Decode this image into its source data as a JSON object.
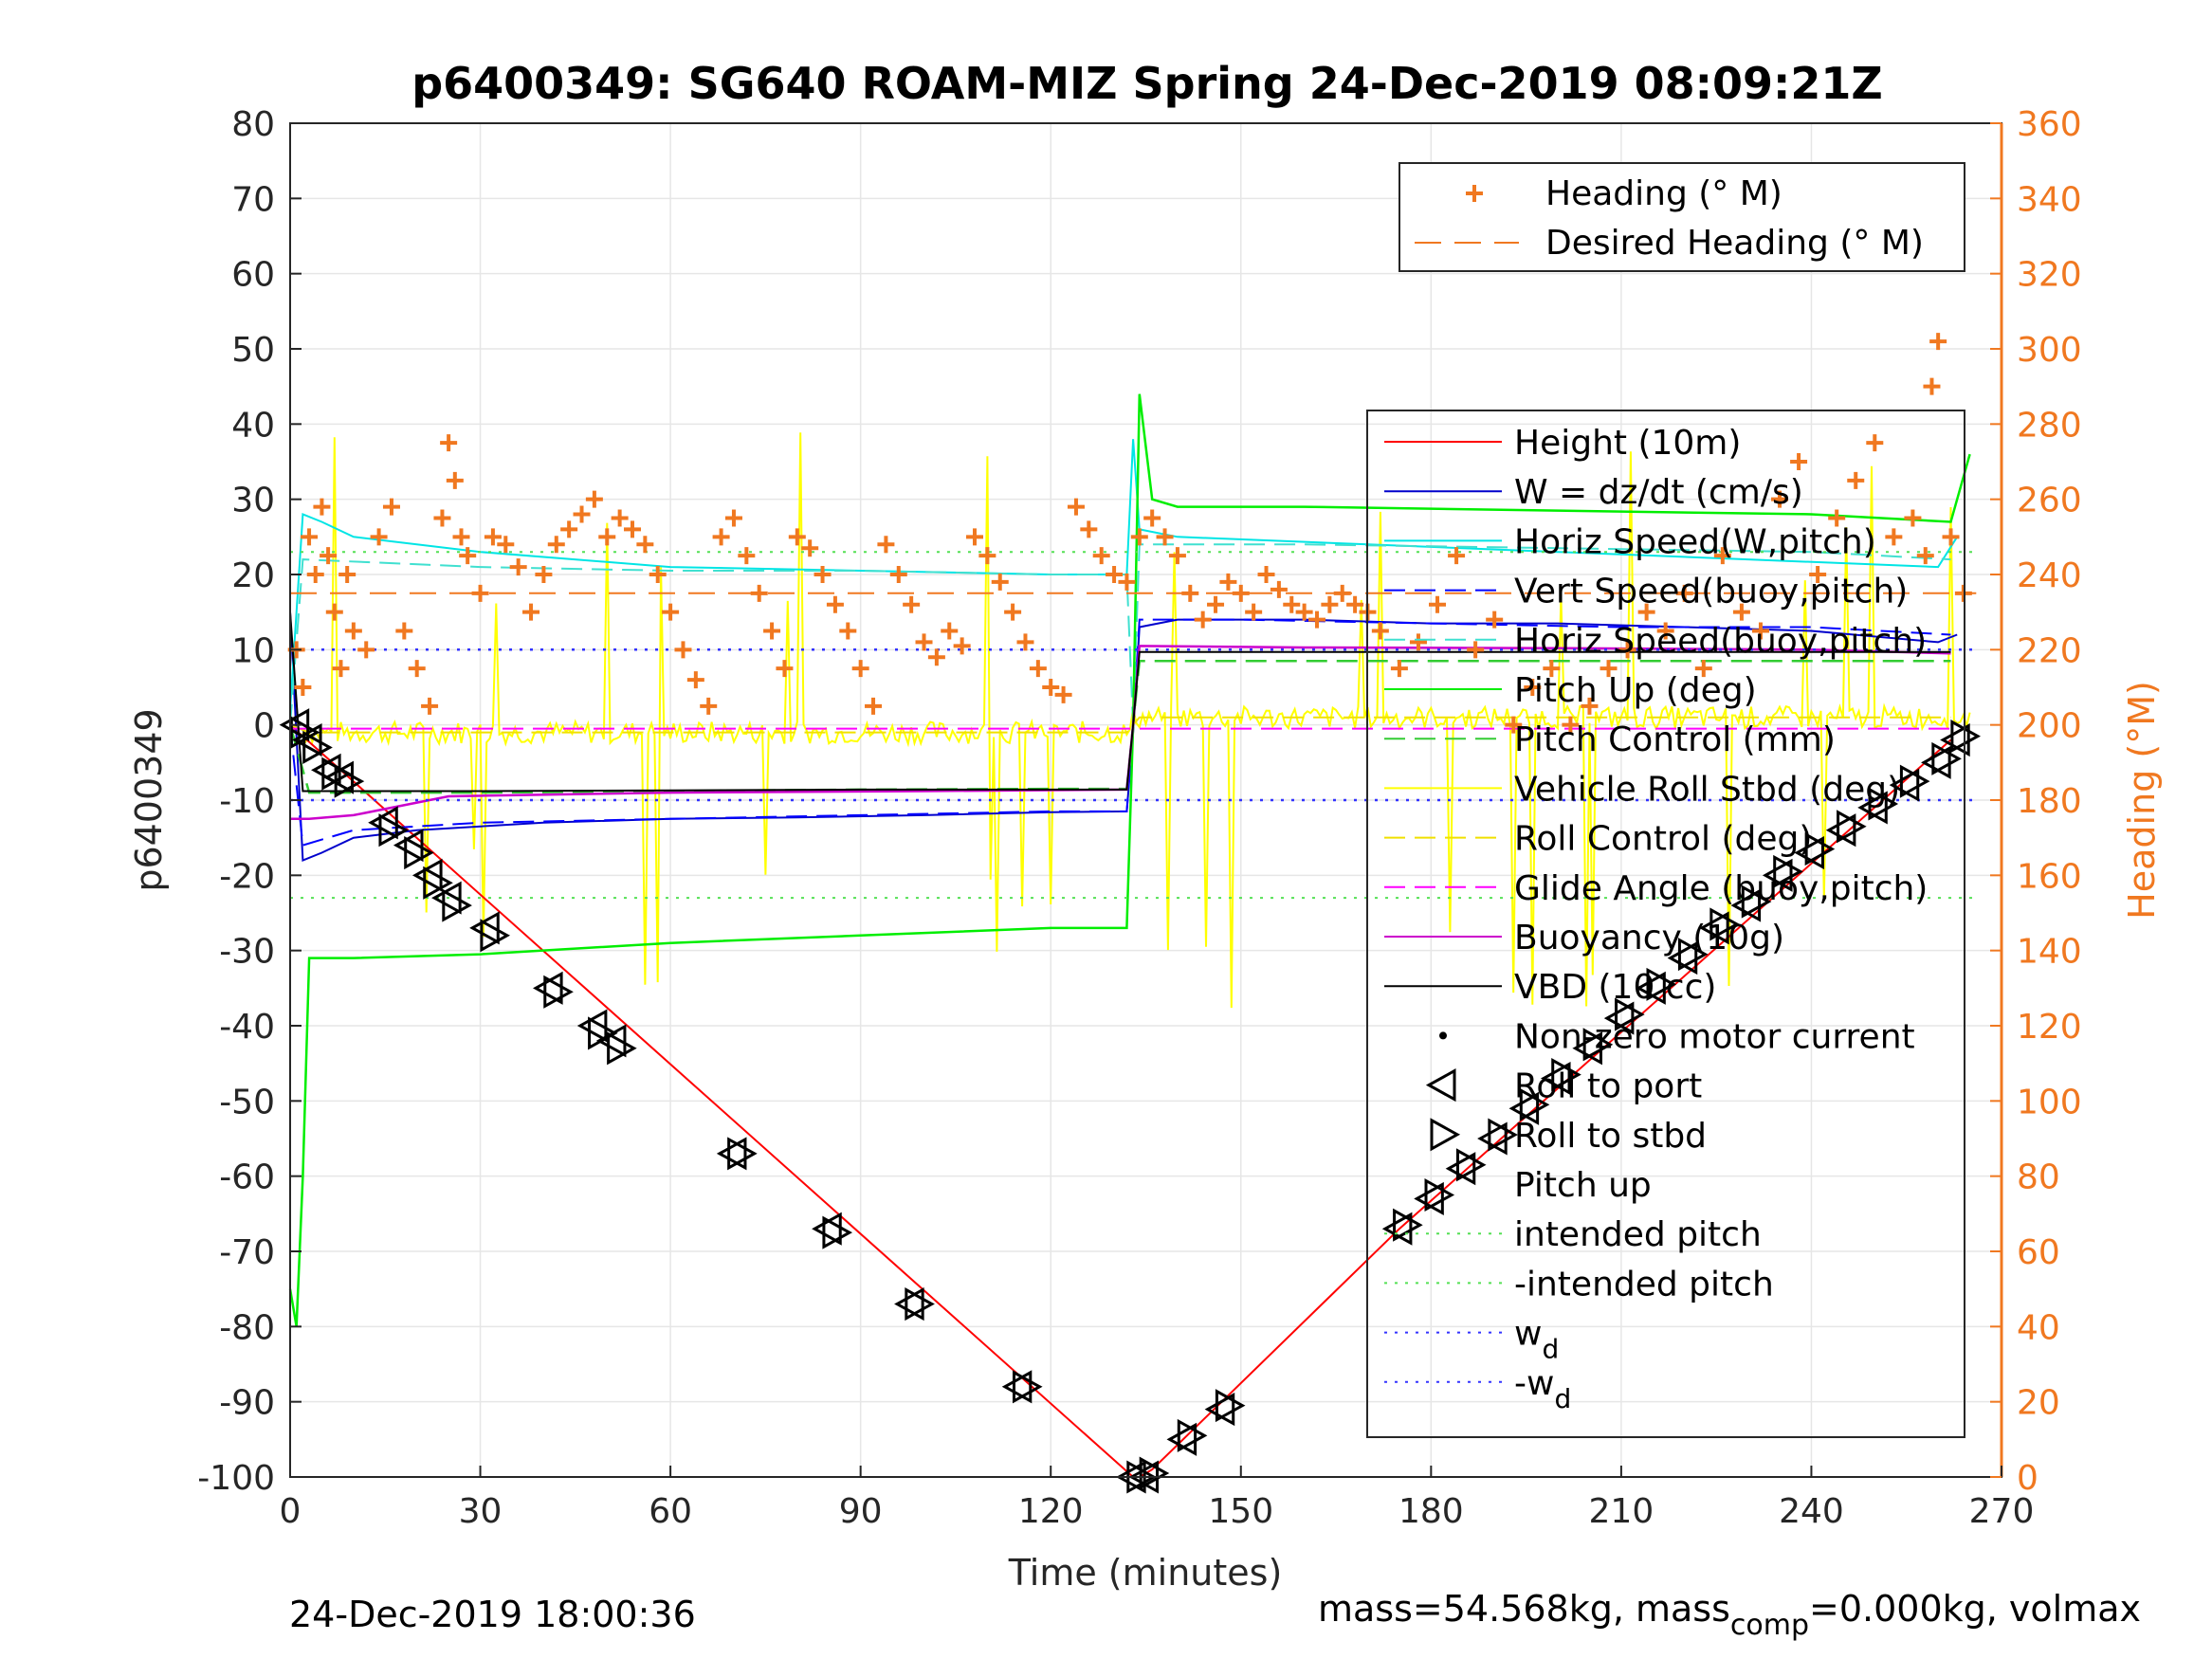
{
  "chart_data": {
    "type": "line",
    "title": "p6400349: SG640 ROAM-MIZ Spring 24-Dec-2019 08:09:21Z",
    "xlabel": "Time (minutes)",
    "ylabel": "p6400349",
    "y2label": "Heading (°M)",
    "xlim": [
      0,
      270
    ],
    "ylim": [
      -100,
      80
    ],
    "y2lim": [
      0,
      360
    ],
    "xticks": [
      "0",
      "30",
      "60",
      "90",
      "120",
      "150",
      "180",
      "210",
      "240",
      "270"
    ],
    "yticks": [
      "80",
      "70",
      "60",
      "50",
      "40",
      "30",
      "20",
      "10",
      "0",
      "-10",
      "-20",
      "-30",
      "-40",
      "-50",
      "-60",
      "-70",
      "-80",
      "-90",
      "-100"
    ],
    "y2ticks": [
      "360",
      "340",
      "320",
      "300",
      "280",
      "260",
      "240",
      "220",
      "200",
      "180",
      "160",
      "140",
      "120",
      "100",
      "80",
      "60",
      "40",
      "20",
      "0"
    ],
    "grid": true,
    "legend_top": {
      "placement": "top-right",
      "entries": [
        "Heading (° M)",
        "Desired Heading (° M)"
      ]
    },
    "legend_main": {
      "placement": "right",
      "entries": [
        "Height (10m)",
        "W = dz/dt (cm/s)",
        "Horiz Speed(W,pitch)",
        "Vert Speed(buoy,pitch)",
        "Horiz Speed(buoy,pitch)",
        "Pitch Up (deg)",
        "Pitch Control (mm)",
        "Vehicle Roll Stbd (deg)",
        "Roll Control (deg)",
        "Glide Angle (buoy,pitch)",
        "Buoyancy (10g)",
        "VBD (10 cc)",
        "Non-zero motor current",
        "Roll to port",
        "Roll to stbd",
        "Pitch up",
        "intended pitch",
        "-intended pitch",
        "w",
        "-w"
      ],
      "subscript": "d"
    },
    "colors": {
      "height": "#FF0000",
      "w": "#0000CC",
      "horiz_w": "#00E5E5",
      "vert_buoy": "#0000FF",
      "horiz_buoy": "#40E0D0",
      "pitch_up": "#00EE00",
      "pitch_ctrl": "#33CC33",
      "roll": "#FFFF00",
      "roll_ctrl": "#F0E000",
      "glide": "#FF00FF",
      "buoy": "#CC00CC",
      "vbd": "#000000",
      "heading": "#F07820",
      "desired": "#F07820",
      "intended": "#55E055",
      "wd": "#3333FF"
    },
    "series": [
      {
        "name": "Height (10m)",
        "x": [
          0,
          133,
          134,
          136,
          175,
          262
        ],
        "y": [
          0,
          -100,
          -100,
          -99,
          -67,
          -2
        ]
      },
      {
        "name": "W = dz/dt (cm/s)",
        "x": [
          0,
          2,
          5,
          10,
          20,
          40,
          60,
          80,
          100,
          120,
          132,
          133,
          134,
          140,
          160,
          180,
          200,
          220,
          240,
          260,
          263
        ],
        "y": [
          15,
          -18,
          -17,
          -15,
          -14,
          -13,
          -12.5,
          -12.3,
          -12,
          -11.6,
          -11.5,
          -1,
          13,
          14,
          14,
          13.5,
          13.5,
          13,
          12.5,
          11,
          12
        ]
      },
      {
        "name": "Horiz Speed(W,pitch)",
        "x": [
          0,
          2,
          5,
          10,
          30,
          60,
          90,
          120,
          132,
          133,
          134,
          140,
          170,
          200,
          230,
          260,
          263
        ],
        "y": [
          2,
          28,
          27,
          25,
          23,
          21,
          20.5,
          20,
          20,
          38,
          26,
          25,
          24,
          23,
          22,
          21,
          25
        ]
      },
      {
        "name": "Vert Speed(buoy,pitch)",
        "x": [
          0,
          2,
          10,
          30,
          60,
          90,
          120,
          132,
          133,
          134,
          150,
          180,
          210,
          240,
          262
        ],
        "y": [
          0,
          -16,
          -14,
          -13,
          -12.5,
          -12,
          -11.5,
          -11.5,
          0,
          14,
          14,
          13.5,
          13,
          13,
          12
        ]
      },
      {
        "name": "Horiz Speed(buoy,pitch)",
        "x": [
          0,
          2,
          30,
          60,
          90,
          120,
          132,
          133,
          134,
          160,
          200,
          240,
          262
        ],
        "y": [
          0,
          22,
          21,
          20.5,
          20.5,
          20,
          20,
          0,
          24,
          24,
          23.5,
          23,
          22
        ]
      },
      {
        "name": "Pitch Up (deg)",
        "x": [
          0,
          1,
          2,
          3,
          10,
          30,
          60,
          90,
          120,
          132,
          133,
          134,
          136,
          140,
          160,
          200,
          240,
          262,
          265
        ],
        "y": [
          -75,
          -80,
          -60,
          -31,
          -31,
          -30.5,
          -29,
          -28,
          -27,
          -27,
          0,
          44,
          30,
          29,
          29,
          28.5,
          28,
          27,
          36
        ]
      },
      {
        "name": "Pitch Control (mm)",
        "x": [
          0,
          3,
          30,
          60,
          90,
          120,
          132,
          133,
          134,
          160,
          200,
          240,
          262
        ],
        "y": [
          0,
          -9,
          -9,
          -8.8,
          -8.6,
          -8.5,
          -8.5,
          0,
          8.5,
          8.5,
          8.5,
          8.5,
          8.5
        ]
      },
      {
        "name": "Roll Control (deg)",
        "x": [
          0,
          3,
          30,
          60,
          90,
          120,
          132,
          134,
          160,
          200,
          240,
          262
        ],
        "y": [
          0,
          -1,
          -1,
          -1,
          -1,
          -1,
          -1,
          1,
          1,
          1,
          1,
          1
        ]
      },
      {
        "name": "Glide Angle (buoy,pitch)",
        "x": [
          0,
          262
        ],
        "y": [
          -0.5,
          -0.5
        ]
      },
      {
        "name": "Buoyancy (10g)",
        "x": [
          0,
          3,
          10,
          25,
          60,
          100,
          132,
          133,
          134,
          160,
          200,
          240,
          262
        ],
        "y": [
          -12.5,
          -12.5,
          -12,
          -9.5,
          -9,
          -8.8,
          -8.6,
          0,
          10.5,
          10.3,
          10.2,
          10,
          9.5
        ]
      },
      {
        "name": "VBD (10 cc)",
        "x": [
          0,
          2,
          30,
          60,
          90,
          120,
          132,
          133,
          134,
          160,
          200,
          240,
          262
        ],
        "y": [
          15,
          -8.8,
          -8.8,
          -8.7,
          -8.6,
          -8.6,
          -8.6,
          0,
          9.7,
          9.7,
          9.7,
          9.7,
          9.7
        ]
      },
      {
        "name": "intended pitch",
        "x": [
          0,
          266
        ],
        "y": [
          23,
          23
        ]
      },
      {
        "name": "-intended pitch",
        "x": [
          0,
          266
        ],
        "y": [
          -23,
          -23
        ]
      },
      {
        "name": "w",
        "x": [
          0,
          266
        ],
        "y": [
          10,
          10
        ]
      },
      {
        "name": "-w",
        "x": [
          0,
          266
        ],
        "y": [
          -10,
          -10
        ]
      },
      {
        "name": "Desired Heading (° M)",
        "x": [
          0,
          266
        ],
        "y2": [
          235,
          235
        ]
      }
    ],
    "heading_points": {
      "x": [
        1,
        2,
        3,
        4,
        5,
        6,
        7,
        8,
        9,
        10,
        12,
        14,
        16,
        18,
        20,
        22,
        24,
        25,
        26,
        27,
        28,
        30,
        32,
        34,
        36,
        38,
        40,
        42,
        44,
        46,
        48,
        50,
        52,
        54,
        56,
        58,
        60,
        62,
        64,
        66,
        68,
        70,
        72,
        74,
        76,
        78,
        80,
        82,
        84,
        86,
        88,
        90,
        92,
        94,
        96,
        98,
        100,
        102,
        104,
        106,
        108,
        110,
        112,
        114,
        116,
        118,
        120,
        122,
        124,
        126,
        128,
        130,
        132,
        134,
        136,
        138,
        140,
        142,
        144,
        146,
        148,
        150,
        152,
        154,
        156,
        158,
        160,
        162,
        164,
        166,
        168,
        170,
        172,
        175,
        178,
        181,
        184,
        187,
        190,
        193,
        196,
        199,
        202,
        205,
        208,
        211,
        214,
        217,
        220,
        223,
        226,
        229,
        232,
        235,
        238,
        241,
        244,
        247,
        250,
        253,
        256,
        258,
        259,
        260,
        262,
        264
      ],
      "y2": [
        220,
        210,
        250,
        240,
        258,
        245,
        230,
        215,
        240,
        225,
        220,
        250,
        258,
        225,
        215,
        205,
        255,
        275,
        265,
        250,
        245,
        235,
        250,
        248,
        242,
        230,
        240,
        248,
        252,
        256,
        260,
        250,
        255,
        252,
        248,
        240,
        230,
        220,
        212,
        205,
        250,
        255,
        245,
        235,
        225,
        215,
        250,
        247,
        240,
        232,
        225,
        215,
        205,
        248,
        240,
        232,
        222,
        218,
        225,
        221,
        250,
        245,
        238,
        230,
        222,
        215,
        210,
        208,
        258,
        252,
        245,
        240,
        238,
        250,
        255,
        250,
        245,
        235,
        228,
        232,
        238,
        235,
        230,
        240,
        236,
        232,
        230,
        228,
        232,
        235,
        232,
        230,
        225,
        215,
        222,
        232,
        245,
        220,
        228,
        200,
        210,
        215,
        200,
        205,
        215,
        220,
        230,
        225,
        235,
        215,
        245,
        230,
        225,
        260,
        270,
        240,
        255,
        265,
        275,
        250,
        255,
        245,
        290,
        302,
        250,
        235
      ]
    },
    "markers": {
      "roll_to_port": {
        "x": [
          1,
          3,
          6,
          8,
          15,
          19,
          22,
          25,
          31,
          41,
          48,
          51,
          70,
          85,
          98,
          115,
          133,
          135,
          141,
          147,
          175,
          180,
          185,
          190,
          195,
          200,
          205,
          210,
          215,
          220,
          225,
          230,
          235,
          240,
          245,
          250,
          255,
          260,
          263
        ],
        "y": [
          0,
          -2,
          -6,
          -7,
          -13,
          -16,
          -20,
          -23,
          -27,
          -35,
          -40,
          -42,
          -57,
          -67,
          -77,
          -88,
          -100,
          -100,
          -95,
          -91,
          -67,
          -63,
          -59,
          -55,
          -51,
          -47,
          -43,
          -39,
          -35,
          -31,
          -27,
          -24,
          -20,
          -17,
          -14,
          -11,
          -8,
          -5,
          -2
        ]
      },
      "roll_to_stbd": {
        "x": [
          2,
          4,
          7,
          9,
          16,
          20,
          23,
          26,
          32,
          42,
          49,
          52,
          71,
          86,
          99,
          116,
          134,
          136,
          142,
          148,
          176,
          181,
          186,
          191,
          196,
          201,
          206,
          211,
          216,
          221,
          226,
          231,
          236,
          241,
          246,
          251,
          256,
          261,
          264
        ],
        "y": [
          -1,
          -3,
          -6.5,
          -7.5,
          -14,
          -17,
          -21,
          -24,
          -28,
          -35.5,
          -41,
          -43,
          -57,
          -67.5,
          -77,
          -88,
          -100,
          -99.5,
          -94.5,
          -90.5,
          -66.5,
          -62.5,
          -58.5,
          -54.5,
          -50.5,
          -46.5,
          -42.5,
          -38.5,
          -34.5,
          -30.5,
          -26.5,
          -23.5,
          -19.5,
          -16.5,
          -13.5,
          -10.5,
          -7.5,
          -4.5,
          -1.5
        ]
      }
    }
  },
  "footer": {
    "timestamp": "24-Dec-2019 18:00:36",
    "mass_prefix": "mass=54.568kg, mass",
    "mass_sub": "comp",
    "mass_suffix": "=0.000kg, volmax"
  }
}
